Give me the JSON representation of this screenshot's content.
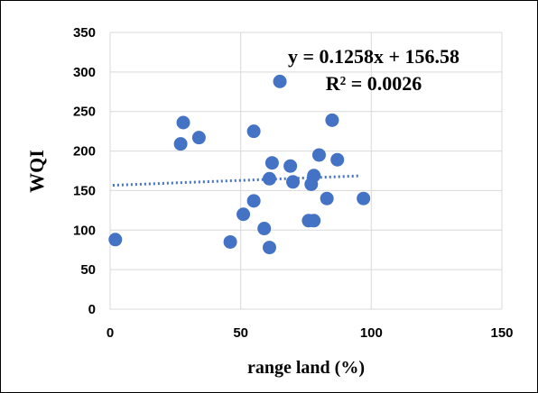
{
  "chart_data": {
    "type": "scatter",
    "xlabel": "range land (%)",
    "ylabel": "WQI",
    "xlim": [
      0,
      150
    ],
    "ylim": [
      0,
      350
    ],
    "x_ticks": [
      "0",
      "50",
      "100",
      "150"
    ],
    "y_ticks": [
      "0",
      "50",
      "100",
      "150",
      "200",
      "250",
      "300",
      "350"
    ],
    "grid": "vertical-and-horizontal",
    "point_color": "#4472C4",
    "trendline": {
      "style": "dotted",
      "slope": 0.1258,
      "intercept": 156.58,
      "x_range": [
        1,
        96
      ],
      "equation": "y = 0.1258x + 156.58",
      "r_squared": "R² = 0.0026"
    },
    "points": [
      {
        "x": 2,
        "y": 88
      },
      {
        "x": 27,
        "y": 209
      },
      {
        "x": 28,
        "y": 236
      },
      {
        "x": 34,
        "y": 217
      },
      {
        "x": 46,
        "y": 85
      },
      {
        "x": 51,
        "y": 120
      },
      {
        "x": 55,
        "y": 225
      },
      {
        "x": 55,
        "y": 137
      },
      {
        "x": 59,
        "y": 102
      },
      {
        "x": 61,
        "y": 78
      },
      {
        "x": 61,
        "y": 165
      },
      {
        "x": 62,
        "y": 185
      },
      {
        "x": 65,
        "y": 288
      },
      {
        "x": 69,
        "y": 181
      },
      {
        "x": 70,
        "y": 161
      },
      {
        "x": 76,
        "y": 112
      },
      {
        "x": 77,
        "y": 158
      },
      {
        "x": 78,
        "y": 169
      },
      {
        "x": 78,
        "y": 112
      },
      {
        "x": 80,
        "y": 195
      },
      {
        "x": 83,
        "y": 140
      },
      {
        "x": 85,
        "y": 239
      },
      {
        "x": 87,
        "y": 189
      },
      {
        "x": 97,
        "y": 140
      }
    ]
  }
}
